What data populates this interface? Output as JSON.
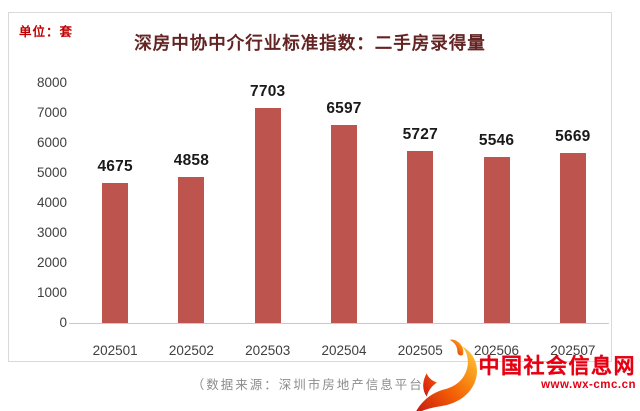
{
  "chart_data": {
    "type": "bar",
    "title": "深房中协中介行业标准指数：二手房录得量",
    "unit_label": "单位：套",
    "categories": [
      "202501",
      "202502",
      "202503",
      "202504",
      "202505",
      "202506",
      "202507"
    ],
    "values": [
      4675,
      4858,
      7703,
      6597,
      5727,
      5546,
      5669
    ],
    "xlabel": "",
    "ylabel": "",
    "ylim": [
      0,
      8000
    ],
    "ytick_interval": 1000,
    "grid": false,
    "legend": "none",
    "data_labels": true,
    "bar_color": "#BE544E"
  },
  "footer": {
    "source_note": "（数据来源：深圳市房地产信息平台）"
  },
  "watermark": {
    "site_name": "中国社会信息网",
    "site_url": "www.wx-cmc.cn",
    "brand_color": "#E60012",
    "logo_icon": "phoenix-flame"
  },
  "colors": {
    "title_text": "#632423",
    "unit_text": "#C00000",
    "bar_fill": "#BE544E",
    "axis_text": "#3F3F3F",
    "data_label_text": "#1A1A1A",
    "axis_line": "#C9C9C9",
    "panel_border": "#D9D9D9",
    "source_text": "#8C8C8C"
  }
}
